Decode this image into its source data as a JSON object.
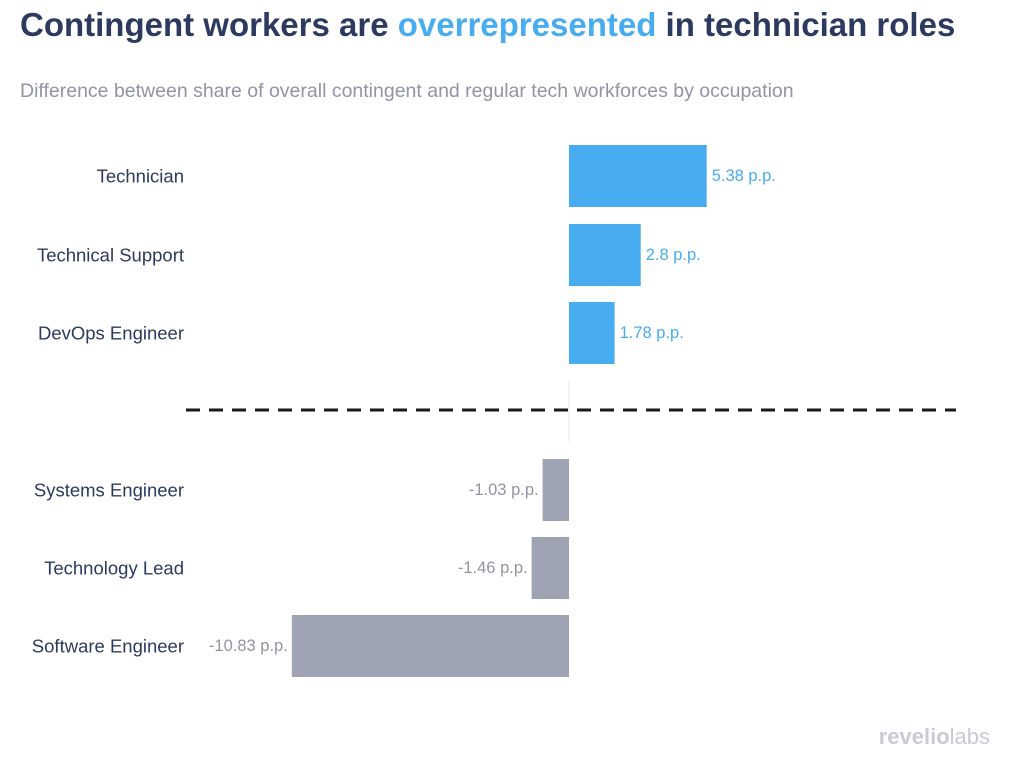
{
  "title": {
    "part1": "Contingent workers are ",
    "highlight": "overrepresented",
    "part2": " in technician roles"
  },
  "subtitle": "Difference between share of overall contingent and regular tech workforces by occupation",
  "brand": {
    "word1": "revelio",
    "word2": "labs"
  },
  "colors": {
    "title": "#2b3a5e",
    "highlight": "#48acf0",
    "positive": "#48acf0",
    "negative": "#9ea4b3",
    "negative_label": "#8f96a3",
    "category_label": "#2b3a5e",
    "divider": "#1a1a1a",
    "zero_line": "#e6e8ec"
  },
  "chart_data": {
    "type": "bar",
    "orientation": "horizontal",
    "title": "Contingent workers are overrepresented in technician roles",
    "subtitle": "Difference between share of overall contingent and regular tech workforces by occupation",
    "xlabel": "",
    "ylabel": "",
    "unit": "p.p.",
    "xlim": [
      -10.83,
      5.38
    ],
    "grid": false,
    "divider": "dashed line separating positive and negative groups",
    "groups": [
      {
        "name": "positive",
        "categories": [
          "Technician",
          "Technical Support",
          "DevOps Engineer"
        ],
        "values": [
          5.38,
          2.8,
          1.78
        ],
        "labels": [
          "5.38 p.p.",
          "2.8 p.p.",
          "1.78 p.p."
        ]
      },
      {
        "name": "negative",
        "categories": [
          "Systems Engineer",
          "Technology Lead",
          "Software Engineer"
        ],
        "values": [
          -1.03,
          -1.46,
          -10.83
        ],
        "labels": [
          "-1.03 p.p.",
          "-1.46 p.p.",
          "-10.83 p.p."
        ]
      }
    ]
  }
}
